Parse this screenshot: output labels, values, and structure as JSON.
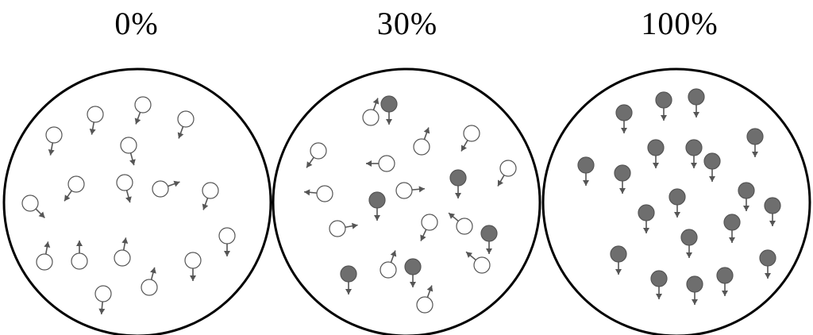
{
  "panels": [
    {
      "label": "0%",
      "magnetized_fraction": 0.0
    },
    {
      "label": "30%",
      "magnetized_fraction": 0.3
    },
    {
      "label": "100%",
      "magnetized_fraction": 1.0
    }
  ],
  "colors": {
    "background": "#ffffff",
    "outline": "#000000",
    "aligned_particle_fill": "#6e6e6e",
    "random_particle_fill": "#ffffff",
    "particle_stroke": "#555555",
    "arrow": "#555555"
  }
}
